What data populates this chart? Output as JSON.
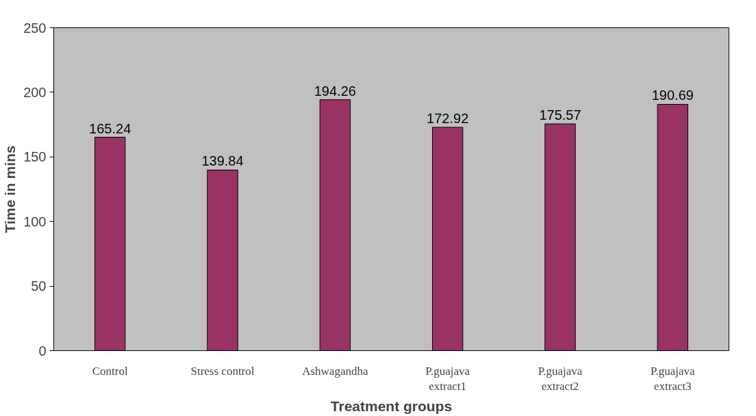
{
  "chart_data": {
    "type": "bar",
    "xlabel": "Treatment groups",
    "ylabel": "Time in mins",
    "categories": [
      "Control",
      "Stress control",
      "Ashwagandha",
      "P.guajava\nextract1",
      "P.guajava\nextract2",
      "P.guajava\nextract3"
    ],
    "values": [
      165.24,
      139.84,
      194.26,
      172.92,
      175.57,
      190.69
    ],
    "color": "#993366",
    "ylim": [
      0,
      250
    ],
    "yticks": [
      0,
      50,
      100,
      150,
      200,
      250
    ],
    "grid": false,
    "data_labels": true
  }
}
